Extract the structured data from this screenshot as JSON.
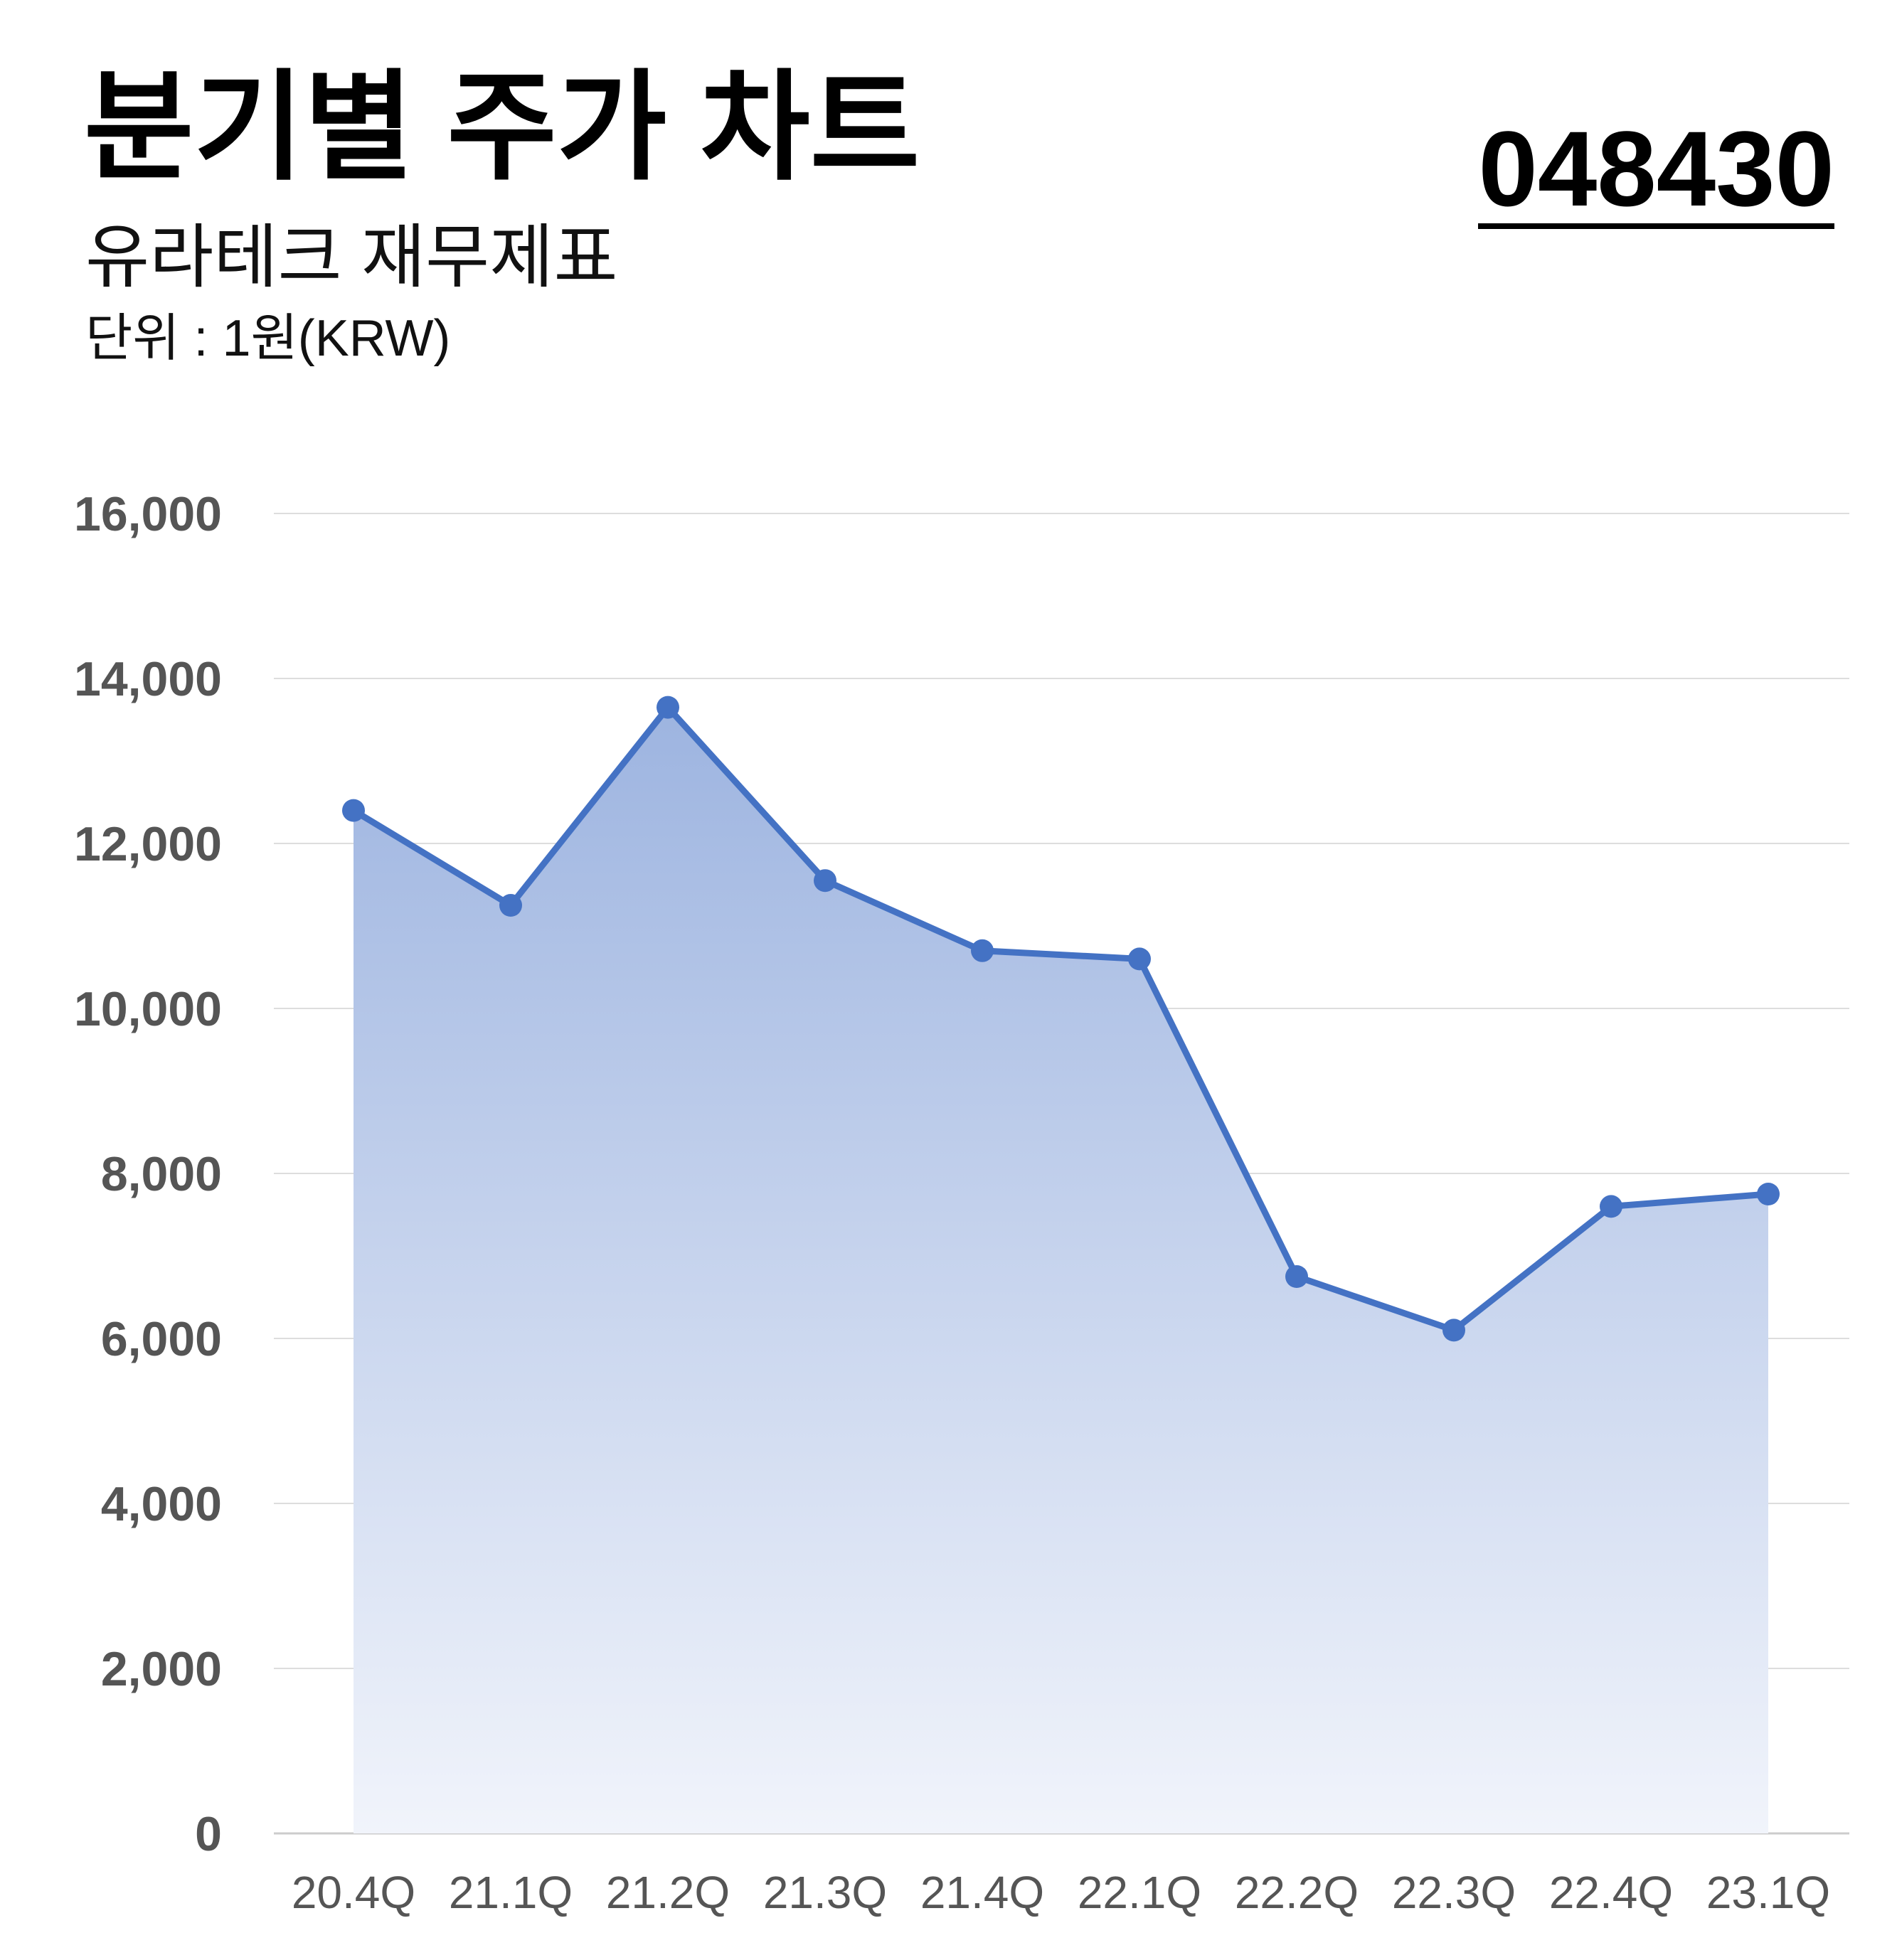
{
  "header": {
    "title": "분기별 주가 차트",
    "subtitle": "유라테크 재무제표",
    "unit": "단위 : 1원(KRW)",
    "code": "048430"
  },
  "colors": {
    "line": "#4472C4",
    "fill_top": "#9DB4E0",
    "fill_bottom": "#F1F4FB",
    "grid": "#DDDDDD",
    "tick_text": "#555555"
  },
  "chart_data": {
    "type": "area",
    "categories": [
      "20.4Q",
      "21.1Q",
      "21.2Q",
      "21.3Q",
      "21.4Q",
      "22.1Q",
      "22.2Q",
      "22.3Q",
      "22.4Q",
      "23.1Q"
    ],
    "series": [
      {
        "values": [
          12400,
          11250,
          13650,
          11550,
          10700,
          10600,
          6750,
          6100,
          7600,
          7750
        ]
      }
    ],
    "ylim": [
      0,
      16000
    ],
    "yticks": [
      0,
      2000,
      4000,
      6000,
      8000,
      10000,
      12000,
      14000,
      16000
    ],
    "ytick_labels": [
      "0",
      "2,000",
      "4,000",
      "6,000",
      "8,000",
      "10,000",
      "12,000",
      "14,000",
      "16,000"
    ],
    "grid": true,
    "legend": "none"
  }
}
